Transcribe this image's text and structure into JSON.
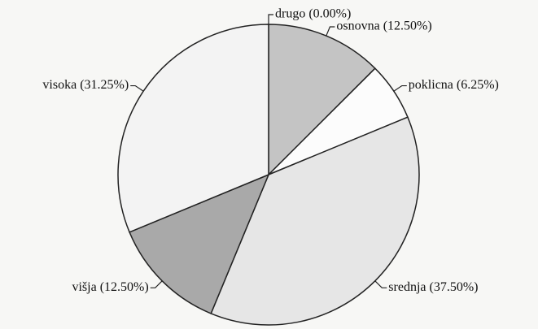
{
  "chart_data": {
    "type": "pie",
    "values": [
      0,
      12.5,
      6.25,
      37.5,
      12.5,
      31.25
    ],
    "value_labels": [
      "drugo (0.00%)",
      "osnovna (12.50%)",
      "poklicna (6.25%)",
      "srednja (37.50%)",
      "višja (12.50%)",
      "visoka (31.25%)"
    ],
    "colors": [
      "#ffffff",
      "#c4c4c4",
      "#fcfcfc",
      "#e6e6e6",
      "#a9a9a9",
      "#f3f3f3"
    ]
  }
}
